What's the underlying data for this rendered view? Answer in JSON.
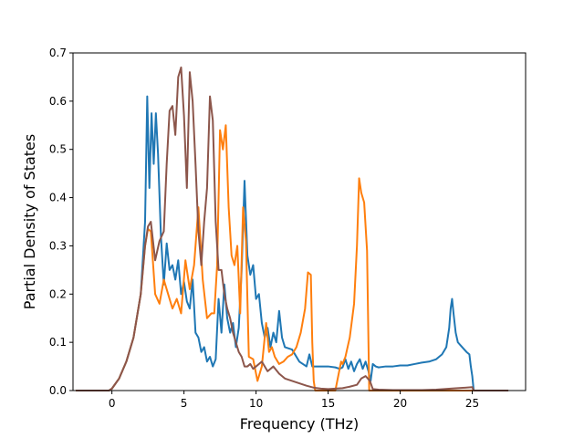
{
  "chart_data": {
    "type": "line",
    "title": "",
    "xlabel": "Frequency (THz)",
    "ylabel": "Partial Density of States",
    "xlim": [
      -2.7,
      28.7
    ],
    "ylim": [
      0.0,
      0.7
    ],
    "xticks": [
      0,
      5,
      10,
      15,
      20,
      25
    ],
    "yticks": [
      0.0,
      0.1,
      0.2,
      0.3,
      0.4,
      0.5,
      0.6,
      0.7
    ],
    "xtick_labels": [
      "0",
      "5",
      "10",
      "15",
      "20",
      "25"
    ],
    "ytick_labels": [
      "0.0",
      "0.1",
      "0.2",
      "0.3",
      "0.4",
      "0.5",
      "0.6",
      "0.7"
    ],
    "grid": false,
    "legend": "none",
    "series": [
      {
        "color": "#1f77b4",
        "x": [
          -2.5,
          -0.2,
          0,
          0.5,
          1,
          1.5,
          2,
          2.3,
          2.45,
          2.6,
          2.75,
          2.9,
          3.05,
          3.2,
          3.4,
          3.6,
          3.8,
          4.0,
          4.2,
          4.4,
          4.6,
          4.8,
          5.0,
          5.2,
          5.4,
          5.6,
          5.8,
          6.0,
          6.2,
          6.4,
          6.6,
          6.8,
          7.0,
          7.2,
          7.4,
          7.6,
          7.8,
          8.0,
          8.2,
          8.4,
          8.6,
          8.8,
          9.0,
          9.2,
          9.4,
          9.6,
          9.8,
          10.0,
          10.2,
          10.4,
          10.6,
          10.8,
          11.0,
          11.2,
          11.4,
          11.6,
          11.8,
          12.0,
          12.5,
          13.0,
          13.5,
          13.7,
          13.9,
          14.2,
          14.5,
          15.0,
          15.5,
          15.8,
          16.0,
          16.2,
          16.4,
          16.6,
          16.8,
          17.0,
          17.2,
          17.4,
          17.6,
          17.8,
          17.95,
          18.1,
          18.3,
          18.5,
          19.0,
          19.5,
          20.0,
          20.5,
          21.0,
          21.5,
          22.0,
          22.5,
          22.9,
          23.2,
          23.4,
          23.5,
          23.6,
          23.7,
          23.85,
          24.0,
          24.3,
          24.6,
          24.8,
          24.9,
          25.0,
          25.1,
          25.5,
          27.5
        ],
        "y": [
          0.0,
          0.0,
          0.004,
          0.025,
          0.06,
          0.11,
          0.2,
          0.35,
          0.61,
          0.42,
          0.575,
          0.47,
          0.575,
          0.49,
          0.32,
          0.22,
          0.305,
          0.25,
          0.26,
          0.23,
          0.27,
          0.2,
          0.225,
          0.185,
          0.17,
          0.23,
          0.12,
          0.11,
          0.08,
          0.09,
          0.06,
          0.07,
          0.05,
          0.065,
          0.19,
          0.12,
          0.22,
          0.15,
          0.12,
          0.14,
          0.09,
          0.13,
          0.25,
          0.435,
          0.28,
          0.24,
          0.26,
          0.19,
          0.2,
          0.14,
          0.11,
          0.13,
          0.09,
          0.12,
          0.1,
          0.165,
          0.11,
          0.09,
          0.085,
          0.06,
          0.05,
          0.075,
          0.05,
          0.05,
          0.05,
          0.05,
          0.048,
          0.045,
          0.048,
          0.065,
          0.045,
          0.06,
          0.04,
          0.055,
          0.065,
          0.045,
          0.06,
          0.04,
          0.02,
          0.055,
          0.05,
          0.048,
          0.05,
          0.05,
          0.052,
          0.052,
          0.055,
          0.058,
          0.06,
          0.065,
          0.075,
          0.09,
          0.13,
          0.17,
          0.19,
          0.16,
          0.12,
          0.1,
          0.09,
          0.08,
          0.075,
          0.05,
          0.03,
          0.0,
          0.0,
          0.0
        ]
      },
      {
        "color": "#ff7f0e",
        "x": [
          -2.5,
          -0.2,
          0,
          0.5,
          1,
          1.5,
          2,
          2.3,
          2.5,
          2.7,
          3.0,
          3.3,
          3.6,
          3.9,
          4.2,
          4.5,
          4.8,
          5.1,
          5.4,
          5.7,
          6.0,
          6.3,
          6.6,
          6.9,
          7.1,
          7.3,
          7.5,
          7.7,
          7.9,
          8.1,
          8.3,
          8.5,
          8.7,
          8.9,
          9.1,
          9.3,
          9.5,
          9.8,
          10.1,
          10.4,
          10.7,
          10.9,
          11.1,
          11.3,
          11.6,
          11.9,
          12.2,
          12.5,
          12.8,
          13.1,
          13.4,
          13.6,
          13.8,
          13.9,
          14.0,
          14.1,
          14.3,
          15.5,
          15.9,
          16.0,
          16.2,
          16.5,
          16.8,
          17.0,
          17.15,
          17.3,
          17.5,
          17.7,
          17.85,
          18.0,
          18.2,
          20.0,
          25.0,
          27.5
        ],
        "y": [
          0.0,
          0.0,
          0.004,
          0.025,
          0.06,
          0.11,
          0.2,
          0.3,
          0.335,
          0.33,
          0.2,
          0.18,
          0.23,
          0.2,
          0.17,
          0.19,
          0.16,
          0.27,
          0.21,
          0.26,
          0.38,
          0.23,
          0.15,
          0.16,
          0.16,
          0.26,
          0.54,
          0.5,
          0.55,
          0.38,
          0.28,
          0.26,
          0.3,
          0.16,
          0.38,
          0.31,
          0.07,
          0.065,
          0.02,
          0.05,
          0.14,
          0.08,
          0.09,
          0.07,
          0.055,
          0.06,
          0.07,
          0.075,
          0.09,
          0.12,
          0.17,
          0.245,
          0.24,
          0.1,
          0.02,
          0.0,
          0.0,
          0.0,
          0.06,
          0.055,
          0.07,
          0.11,
          0.18,
          0.3,
          0.44,
          0.41,
          0.39,
          0.29,
          0.0,
          0.0,
          0.0,
          0.0,
          0.0,
          0.0
        ]
      },
      {
        "color": "#8c564b",
        "x": [
          -2.5,
          -0.2,
          0,
          0.5,
          1,
          1.5,
          2,
          2.3,
          2.5,
          2.7,
          3.0,
          3.3,
          3.6,
          3.8,
          4.0,
          4.2,
          4.4,
          4.6,
          4.8,
          5.0,
          5.2,
          5.4,
          5.6,
          5.8,
          6.0,
          6.2,
          6.4,
          6.6,
          6.8,
          7.0,
          7.2,
          7.4,
          7.6,
          7.8,
          8.0,
          8.2,
          8.4,
          8.6,
          8.8,
          9.0,
          9.2,
          9.4,
          9.6,
          9.8,
          10.0,
          10.4,
          10.8,
          11.2,
          11.6,
          12.0,
          12.5,
          13.0,
          13.5,
          14.0,
          14.5,
          15.0,
          15.5,
          16.0,
          16.5,
          17.0,
          17.3,
          17.6,
          17.9,
          18.1,
          18.5,
          19.5,
          20.5,
          21.5,
          22.5,
          23.5,
          24.5,
          25.0,
          25.1,
          27.5
        ],
        "y": [
          0.0,
          0.0,
          0.004,
          0.025,
          0.06,
          0.11,
          0.2,
          0.3,
          0.34,
          0.35,
          0.27,
          0.31,
          0.33,
          0.47,
          0.58,
          0.59,
          0.53,
          0.65,
          0.67,
          0.57,
          0.42,
          0.66,
          0.6,
          0.47,
          0.33,
          0.26,
          0.35,
          0.42,
          0.61,
          0.56,
          0.35,
          0.25,
          0.25,
          0.2,
          0.17,
          0.15,
          0.12,
          0.1,
          0.08,
          0.07,
          0.05,
          0.05,
          0.055,
          0.045,
          0.05,
          0.06,
          0.04,
          0.05,
          0.035,
          0.025,
          0.02,
          0.015,
          0.01,
          0.006,
          0.004,
          0.003,
          0.004,
          0.005,
          0.008,
          0.012,
          0.025,
          0.03,
          0.02,
          0.003,
          0.002,
          0.001,
          0.001,
          0.001,
          0.002,
          0.004,
          0.006,
          0.007,
          0.0,
          0.0
        ]
      }
    ]
  }
}
